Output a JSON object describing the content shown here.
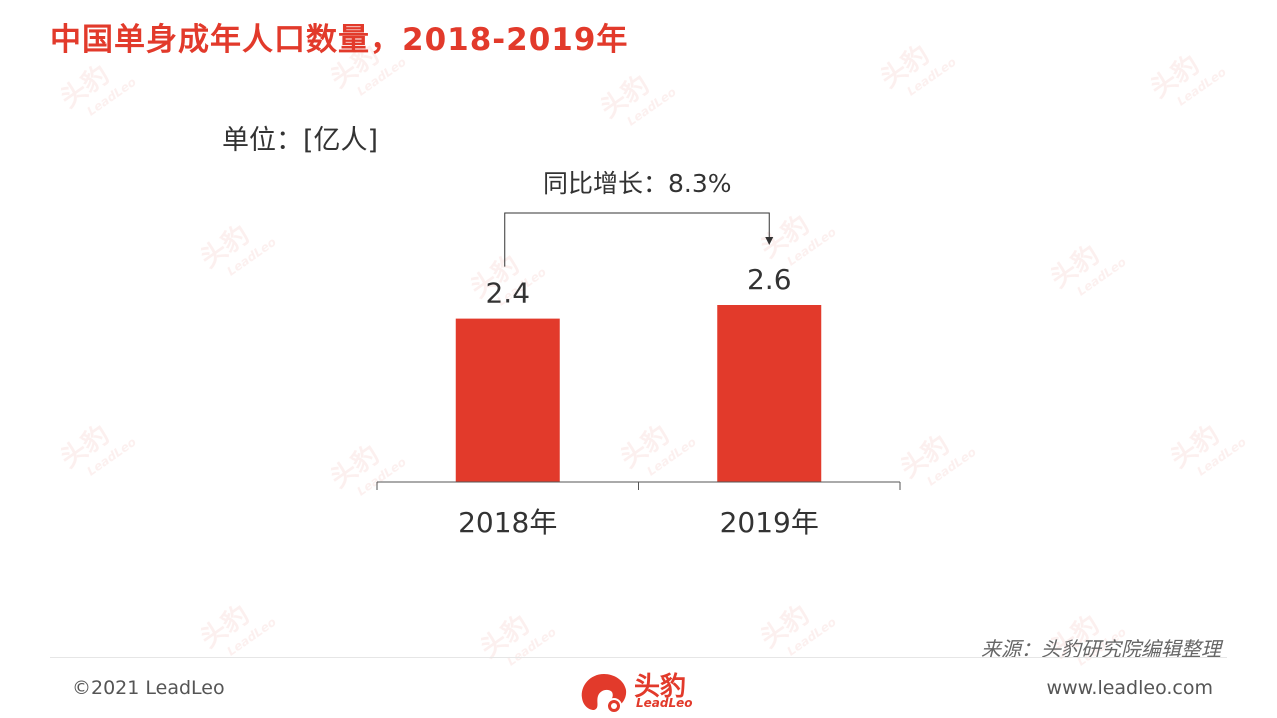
{
  "title": "中国单身成年人口数量，2018-2019年",
  "unit_label": "单位：[亿人]",
  "growth_label": "同比增长：8.3%",
  "chart_data": {
    "type": "bar",
    "categories": [
      "2018年",
      "2019年"
    ],
    "values": [
      2.4,
      2.6
    ],
    "data_labels": [
      "2.4",
      "2.6"
    ],
    "bar_color": "#E23A2B",
    "ylim": [
      0,
      2.6
    ],
    "grid": false,
    "xlabel": "",
    "ylabel": ""
  },
  "footer": {
    "source": "来源：头豹研究院编辑整理",
    "copyright": "©2021 LeadLeo",
    "website": "www.leadleo.com"
  },
  "logo": {
    "cn": "头豹",
    "en": "LeadLeo"
  },
  "watermark": {
    "cn": "头豹",
    "en": "LeadLeo"
  },
  "colors": {
    "accent": "#E23A2B",
    "text": "#333333"
  }
}
